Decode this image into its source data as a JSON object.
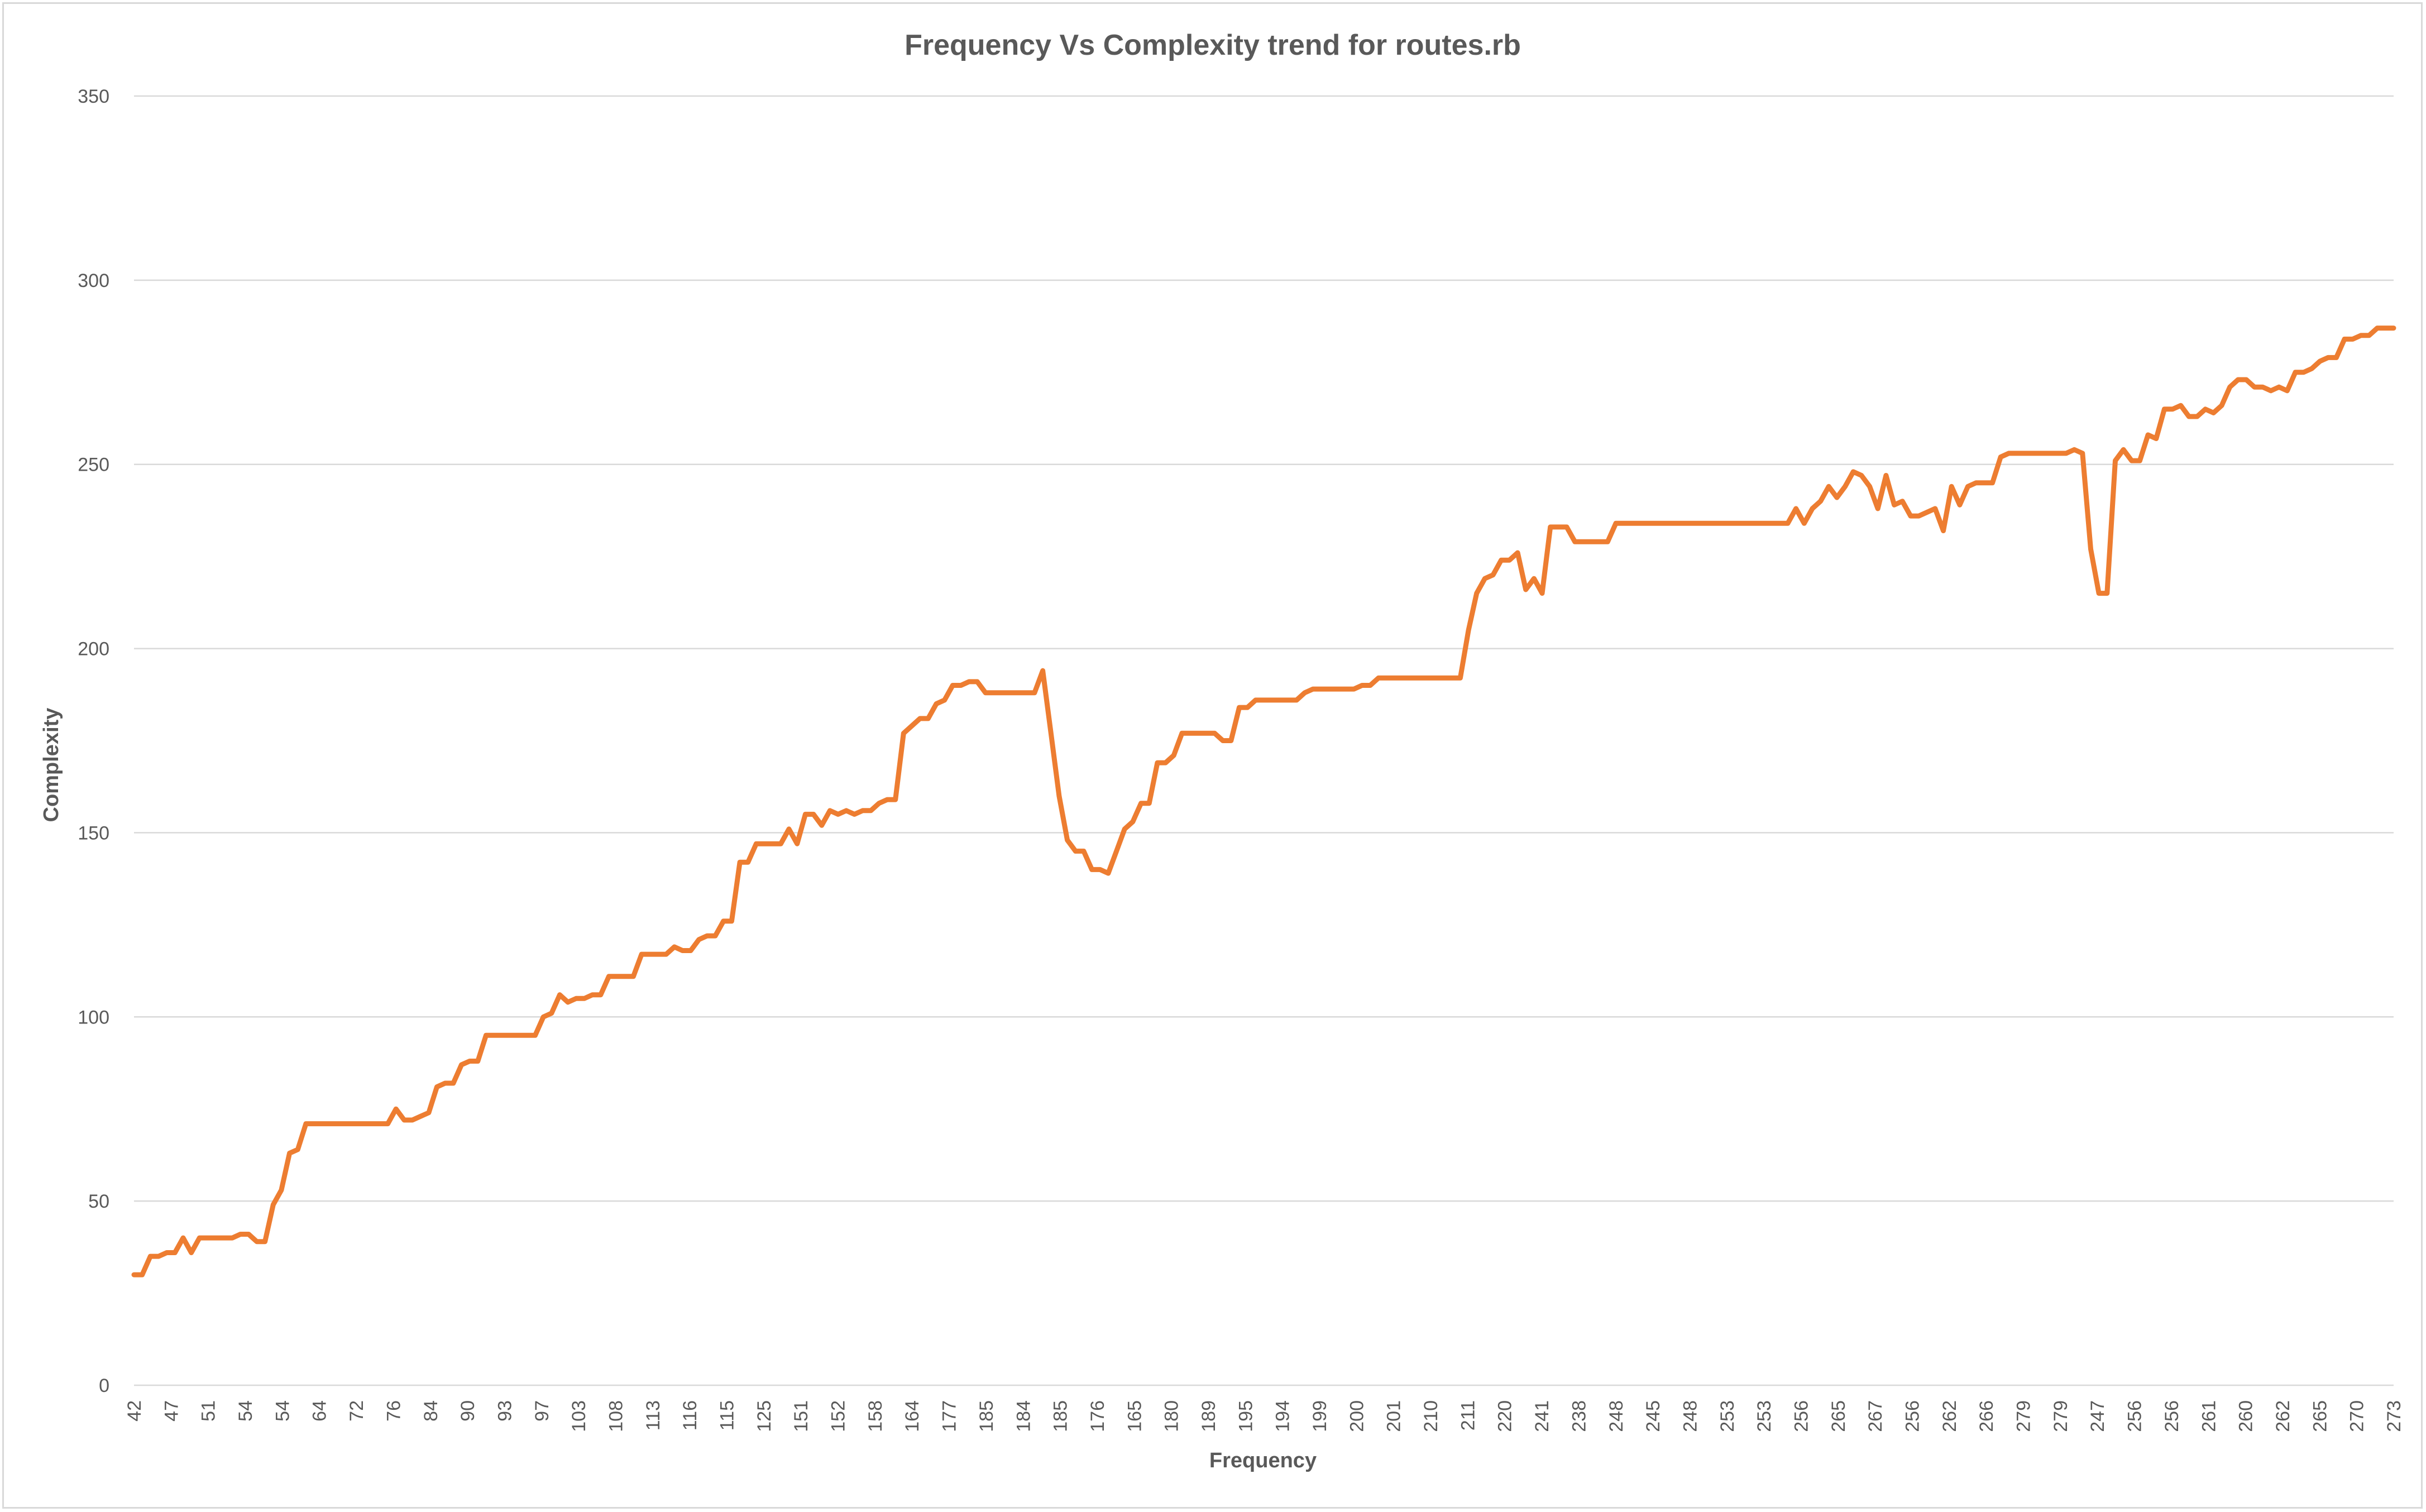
{
  "chart_data": {
    "type": "line",
    "title": "Frequency Vs Complexity trend for routes.rb",
    "xlabel": "Frequency",
    "ylabel": "Complexity",
    "ylim": [
      0,
      350
    ],
    "yticks": [
      0,
      50,
      100,
      150,
      200,
      250,
      300,
      350
    ],
    "grid": true,
    "legend": "none",
    "colors": {
      "line": "#ED7D31",
      "grid": "#d9d9d9",
      "text": "#595959"
    },
    "x_tick_labels": [
      "42",
      "47",
      "51",
      "54",
      "54",
      "64",
      "72",
      "76",
      "84",
      "90",
      "93",
      "97",
      "103",
      "108",
      "113",
      "116",
      "115",
      "125",
      "151",
      "152",
      "158",
      "164",
      "177",
      "185",
      "184",
      "185",
      "176",
      "165",
      "180",
      "189",
      "195",
      "194",
      "199",
      "200",
      "201",
      "210",
      "211",
      "220",
      "241",
      "238",
      "248",
      "245",
      "248",
      "253",
      "253",
      "256",
      "265",
      "267",
      "256",
      "262",
      "266",
      "279",
      "279",
      "247",
      "256",
      "256",
      "261",
      "260",
      "262",
      "265",
      "270",
      "273"
    ],
    "series": [
      {
        "values": [
          30,
          30,
          35,
          35,
          36,
          36,
          40,
          36,
          40,
          40,
          40,
          40,
          40,
          41,
          41,
          39,
          39,
          49,
          53,
          63,
          64,
          71,
          71,
          71,
          71,
          71,
          71,
          71,
          71,
          71,
          71,
          71,
          75,
          72,
          72,
          73,
          74,
          81,
          82,
          82,
          87,
          88,
          88,
          95,
          95,
          95,
          95,
          95,
          95,
          95,
          100,
          101,
          106,
          104,
          105,
          105,
          106,
          106,
          111,
          111,
          111,
          111,
          117,
          117,
          117,
          117,
          119,
          118,
          118,
          121,
          122,
          122,
          126,
          126,
          142,
          142,
          147,
          147,
          147,
          147,
          151,
          147,
          155,
          155,
          152,
          156,
          155,
          156,
          155,
          156,
          156,
          158,
          159,
          159,
          177,
          179,
          181,
          181,
          185,
          186,
          190,
          190,
          191,
          191,
          188,
          188,
          188,
          188,
          188,
          188,
          188,
          194,
          177,
          160,
          148,
          145,
          145,
          140,
          140,
          139,
          145,
          151,
          153,
          158,
          158,
          169,
          169,
          171,
          177,
          177,
          177,
          177,
          177,
          175,
          175,
          184,
          184,
          186,
          186,
          186,
          186,
          186,
          186,
          188,
          189,
          189,
          189,
          189,
          189,
          189,
          190,
          190,
          192,
          192,
          192,
          192,
          192,
          192,
          192,
          192,
          192,
          192,
          192,
          205,
          215,
          219,
          220,
          224,
          224,
          226,
          216,
          219,
          215,
          233,
          233,
          233,
          229,
          229,
          229,
          229,
          229,
          234,
          234,
          234,
          234,
          234,
          234,
          234,
          234,
          234,
          234,
          234,
          234,
          234,
          234,
          234,
          234,
          234,
          234,
          234,
          234,
          234,
          234,
          238,
          234,
          238,
          240,
          244,
          241,
          244,
          248,
          247,
          244,
          238,
          247,
          239,
          240,
          236,
          236,
          237,
          238,
          232,
          244,
          239,
          244,
          245,
          245,
          245,
          252,
          253,
          253,
          253,
          253,
          253,
          253,
          253,
          253,
          254,
          253,
          227,
          215,
          215,
          251,
          254,
          251,
          251,
          258,
          257,
          265,
          265,
          266,
          263,
          263,
          265,
          264,
          266,
          271,
          273,
          273,
          271,
          271,
          270,
          271,
          270,
          275,
          275,
          276,
          278,
          279,
          279,
          284,
          284,
          285,
          285,
          287,
          287,
          287
        ]
      }
    ]
  }
}
